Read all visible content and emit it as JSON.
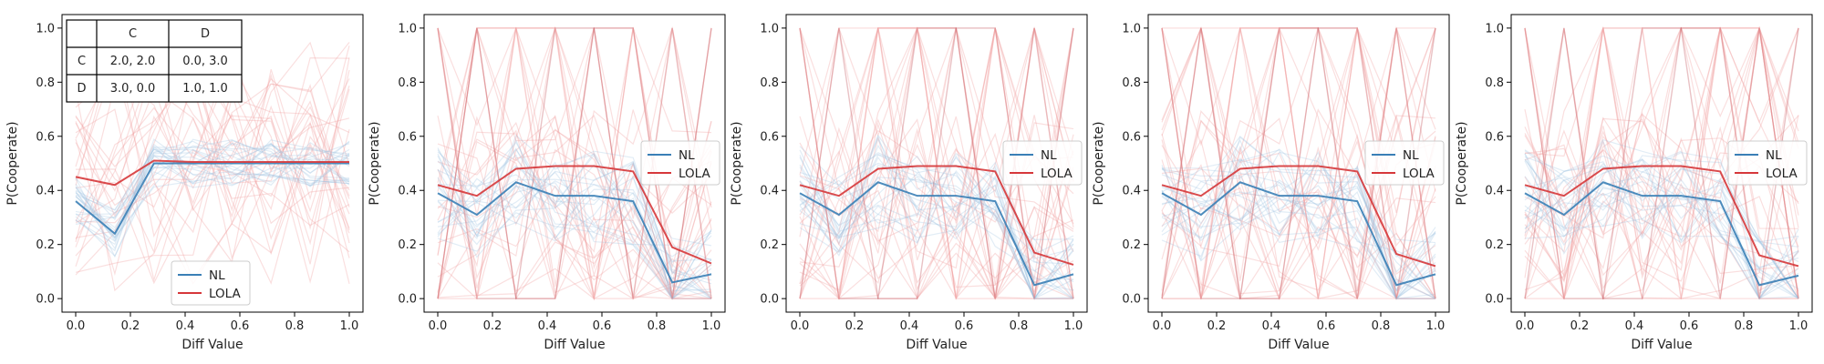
{
  "figure": {
    "xlabel": "Diff Value",
    "ylabel": "P(Cooperate)"
  },
  "legend_labels": {
    "nl": "NL",
    "lola": "LOLA"
  },
  "colors": {
    "nl": "#3a7fb6",
    "lola": "#d6373a",
    "nl_faint": "#9ec3e0",
    "lola_faint": "#f2a3a3"
  },
  "payoff_table": {
    "col_headers": [
      "C",
      "D"
    ],
    "rows": [
      {
        "label": "C",
        "cells": [
          "2.0, 2.0",
          "0.0, 3.0"
        ]
      },
      {
        "label": "D",
        "cells": [
          "3.0, 0.0",
          "1.0, 1.0"
        ]
      }
    ]
  },
  "chart_data": [
    {
      "type": "line",
      "xlabel": "Diff Value",
      "ylabel": "P(Cooperate)",
      "xlim": [
        -0.05,
        1.05
      ],
      "ylim": [
        -0.05,
        1.05
      ],
      "xticks": [
        "0.0",
        "0.2",
        "0.4",
        "0.6",
        "0.8",
        "1.0"
      ],
      "yticks": [
        "0.0",
        "0.2",
        "0.4",
        "0.6",
        "0.8",
        "1.0"
      ],
      "legend_position": "lower-center",
      "x": [
        0,
        0.143,
        0.286,
        0.429,
        0.571,
        0.714,
        0.857,
        1.0
      ],
      "series": [
        {
          "name": "NL",
          "values": [
            0.36,
            0.24,
            0.5,
            0.5,
            0.5,
            0.5,
            0.5,
            0.5
          ]
        },
        {
          "name": "LOLA",
          "values": [
            0.45,
            0.42,
            0.51,
            0.505,
            0.505,
            0.505,
            0.505,
            0.505
          ]
        }
      ]
    },
    {
      "type": "line",
      "xlabel": "Diff Value",
      "ylabel": "P(Cooperate)",
      "xlim": [
        -0.05,
        1.05
      ],
      "ylim": [
        -0.05,
        1.05
      ],
      "xticks": [
        "0.0",
        "0.2",
        "0.4",
        "0.6",
        "0.8",
        "1.0"
      ],
      "yticks": [
        "0.0",
        "0.2",
        "0.4",
        "0.6",
        "0.8",
        "1.0"
      ],
      "legend_position": "center-right",
      "x": [
        0,
        0.143,
        0.286,
        0.429,
        0.571,
        0.714,
        0.857,
        1.0
      ],
      "series": [
        {
          "name": "NL",
          "values": [
            0.39,
            0.31,
            0.43,
            0.38,
            0.38,
            0.36,
            0.06,
            0.09
          ]
        },
        {
          "name": "LOLA",
          "values": [
            0.42,
            0.38,
            0.48,
            0.49,
            0.49,
            0.47,
            0.19,
            0.13
          ]
        }
      ]
    },
    {
      "type": "line",
      "xlabel": "Diff Value",
      "ylabel": "P(Cooperate)",
      "xlim": [
        -0.05,
        1.05
      ],
      "ylim": [
        -0.05,
        1.05
      ],
      "xticks": [
        "0.0",
        "0.2",
        "0.4",
        "0.6",
        "0.8",
        "1.0"
      ],
      "yticks": [
        "0.0",
        "0.2",
        "0.4",
        "0.6",
        "0.8",
        "1.0"
      ],
      "legend_position": "center-right",
      "x": [
        0,
        0.143,
        0.286,
        0.429,
        0.571,
        0.714,
        0.857,
        1.0
      ],
      "series": [
        {
          "name": "NL",
          "values": [
            0.39,
            0.31,
            0.43,
            0.38,
            0.38,
            0.36,
            0.05,
            0.09
          ]
        },
        {
          "name": "LOLA",
          "values": [
            0.42,
            0.38,
            0.48,
            0.49,
            0.49,
            0.47,
            0.17,
            0.125
          ]
        }
      ]
    },
    {
      "type": "line",
      "xlabel": "Diff Value",
      "ylabel": "P(Cooperate)",
      "xlim": [
        -0.05,
        1.05
      ],
      "ylim": [
        -0.05,
        1.05
      ],
      "xticks": [
        "0.0",
        "0.2",
        "0.4",
        "0.6",
        "0.8",
        "1.0"
      ],
      "yticks": [
        "0.0",
        "0.2",
        "0.4",
        "0.6",
        "0.8",
        "1.0"
      ],
      "legend_position": "center-right",
      "x": [
        0,
        0.143,
        0.286,
        0.429,
        0.571,
        0.714,
        0.857,
        1.0
      ],
      "series": [
        {
          "name": "NL",
          "values": [
            0.39,
            0.31,
            0.43,
            0.38,
            0.38,
            0.36,
            0.05,
            0.09
          ]
        },
        {
          "name": "LOLA",
          "values": [
            0.42,
            0.38,
            0.48,
            0.49,
            0.49,
            0.47,
            0.165,
            0.12
          ]
        }
      ]
    },
    {
      "type": "line",
      "xlabel": "Diff Value",
      "ylabel": "P(Cooperate)",
      "xlim": [
        -0.05,
        1.05
      ],
      "ylim": [
        -0.05,
        1.05
      ],
      "xticks": [
        "0.0",
        "0.2",
        "0.4",
        "0.6",
        "0.8",
        "1.0"
      ],
      "yticks": [
        "0.0",
        "0.2",
        "0.4",
        "0.6",
        "0.8",
        "1.0"
      ],
      "legend_position": "center-right",
      "x": [
        0,
        0.143,
        0.286,
        0.429,
        0.571,
        0.714,
        0.857,
        1.0
      ],
      "series": [
        {
          "name": "NL",
          "values": [
            0.39,
            0.31,
            0.43,
            0.38,
            0.38,
            0.36,
            0.05,
            0.085
          ]
        },
        {
          "name": "LOLA",
          "values": [
            0.42,
            0.38,
            0.48,
            0.49,
            0.49,
            0.47,
            0.16,
            0.12
          ]
        }
      ]
    }
  ]
}
